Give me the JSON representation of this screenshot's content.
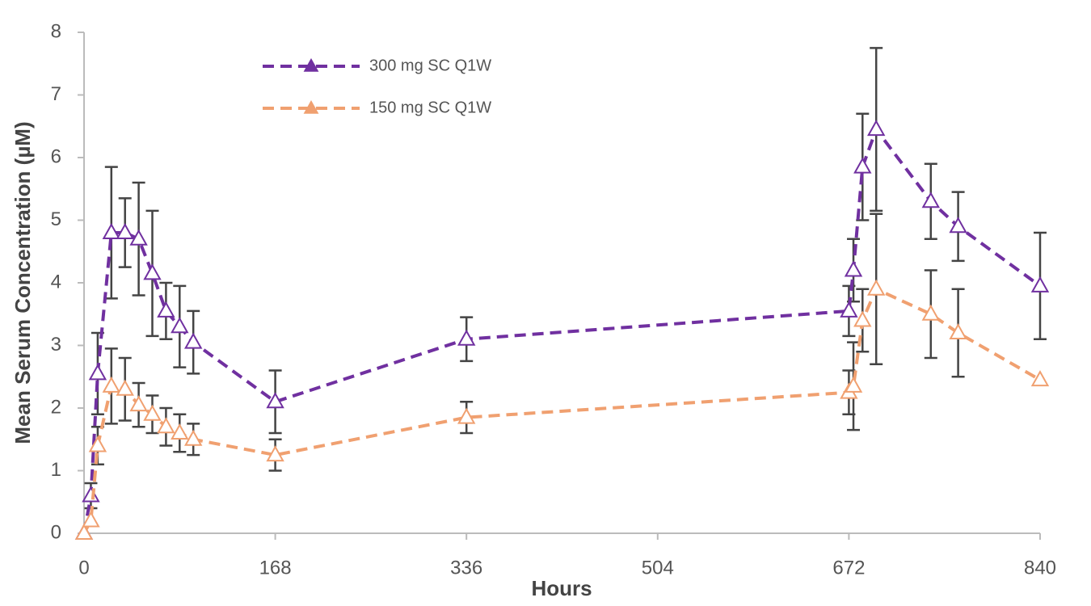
{
  "chart_data": {
    "type": "line",
    "xlabel": "Hours",
    "ylabel": "Mean Serum Concentration (µM)",
    "x": [
      0,
      6,
      12,
      24,
      36,
      48,
      60,
      72,
      84,
      96,
      168,
      336,
      672,
      676,
      684,
      696,
      744,
      768,
      840
    ],
    "xlim": [
      0,
      840
    ],
    "xticks": [
      0,
      168,
      336,
      504,
      672,
      840
    ],
    "ylim": [
      0,
      8
    ],
    "yticks": [
      0,
      1,
      2,
      3,
      4,
      5,
      6,
      7,
      8
    ],
    "error_color": "#444444",
    "legend": "upper left",
    "series": [
      {
        "name": "300 mg SC Q1W",
        "color": "#7030a0",
        "values": [
          0,
          0.6,
          2.55,
          4.8,
          4.8,
          4.7,
          4.15,
          3.55,
          3.3,
          3.05,
          2.1,
          3.1,
          3.55,
          4.2,
          5.85,
          6.45,
          5.3,
          4.9,
          3.95
        ],
        "errors": [
          null,
          0.2,
          0.65,
          1.05,
          0.55,
          0.9,
          1.0,
          0.45,
          0.65,
          0.5,
          0.5,
          0.35,
          0.4,
          0.5,
          0.85,
          1.3,
          0.6,
          0.55,
          0.85
        ]
      },
      {
        "name": "150 mg SC Q1W",
        "color": "#f0a070",
        "values": [
          0,
          0.2,
          1.4,
          2.35,
          2.3,
          2.05,
          1.9,
          1.7,
          1.6,
          1.5,
          1.25,
          1.85,
          2.25,
          2.35,
          3.4,
          3.9,
          3.5,
          3.2,
          2.45
        ],
        "errors": [
          null,
          null,
          0.3,
          0.6,
          0.5,
          0.35,
          0.3,
          0.3,
          0.3,
          0.25,
          0.25,
          0.25,
          0.35,
          0.7,
          0.5,
          1.2,
          0.7,
          0.7,
          null
        ]
      }
    ]
  }
}
